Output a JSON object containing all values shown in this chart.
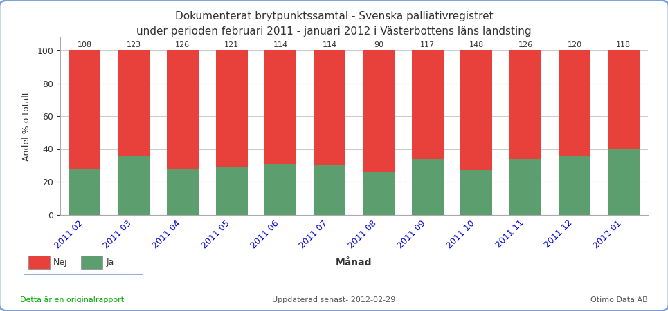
{
  "title_line1": "Dokumenterat brytpunktssamtal - Svenska palliativregistret",
  "title_line2": "under perioden februari 2011 - januari 2012 i Västerbottens läns landsting",
  "xlabel": "Månad",
  "ylabel": "Andel % o totalt",
  "categories": [
    "2011 02",
    "2011 03",
    "2011 04",
    "2011 05",
    "2011 06",
    "2011 07",
    "2011 08",
    "2011 09",
    "2011 10",
    "2011 11",
    "2011 12",
    "2012 01"
  ],
  "totals": [
    108,
    123,
    126,
    121,
    114,
    114,
    90,
    117,
    148,
    126,
    120,
    118
  ],
  "ja_pct": [
    28,
    36,
    28,
    29,
    31,
    30,
    26,
    34,
    27,
    34,
    36,
    40
  ],
  "color_nej": "#e8413c",
  "color_ja": "#5c9e6e",
  "color_title": "#333333",
  "color_xtick": "#0000cc",
  "color_footer_left": "#00aa00",
  "color_footer_mid": "#555555",
  "color_footer_right": "#555555",
  "footer_left": "Detta är en originalrapport",
  "footer_mid": "Uppdaterad senast- 2012-02-29",
  "footer_right": "Otimo Data AB",
  "ylim": [
    0,
    100
  ],
  "bar_width": 0.65,
  "background_color": "#ffffff",
  "plot_bg": "#ffffff",
  "grid_color": "#cccccc",
  "legend_nej": "Nej",
  "legend_ja": "Ja",
  "border_color": "#7b9ed9"
}
